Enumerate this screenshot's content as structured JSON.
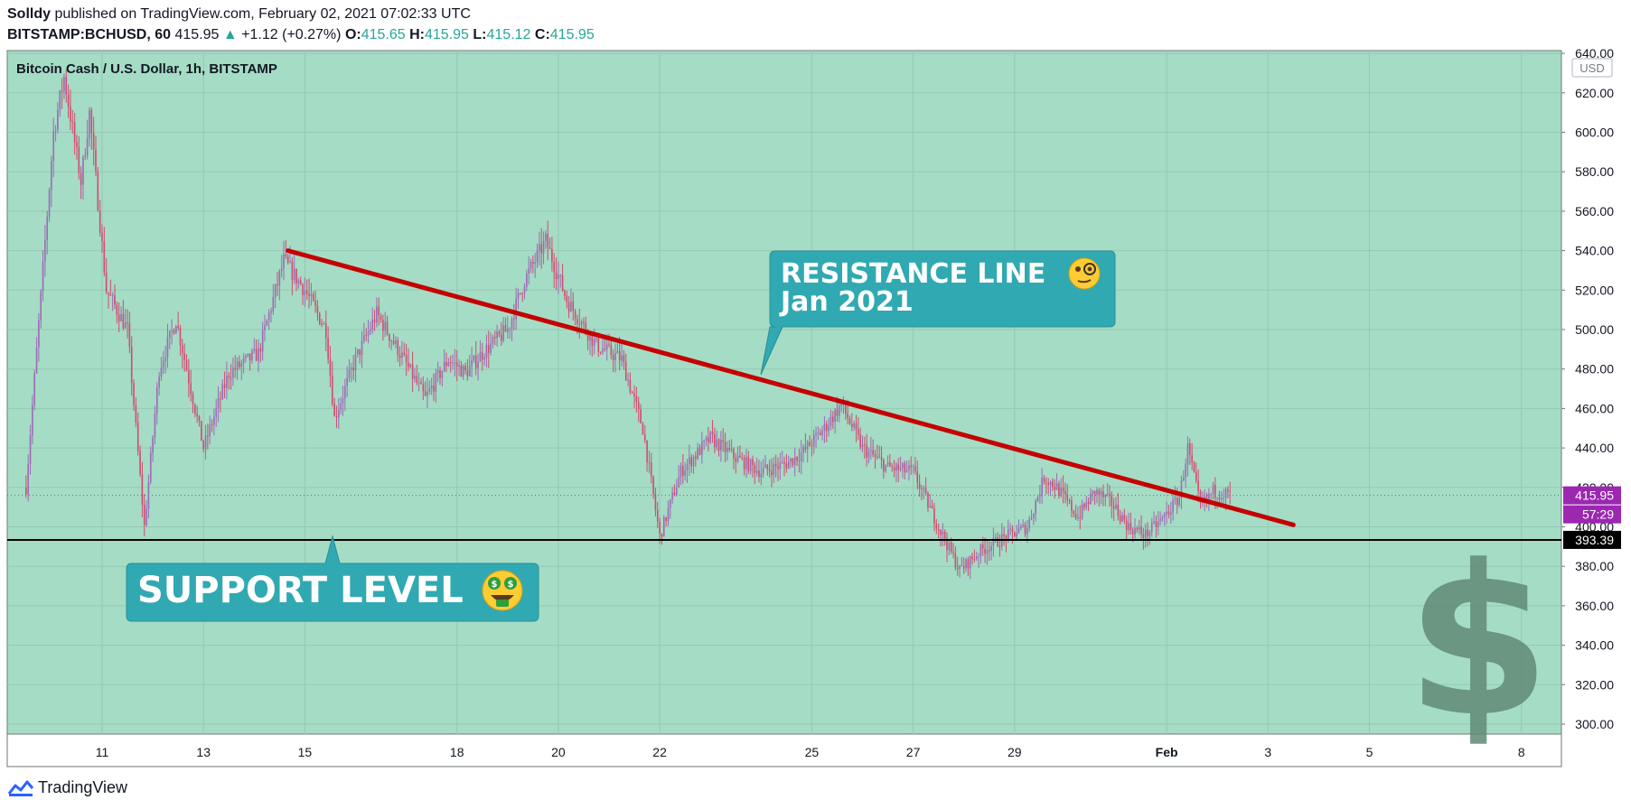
{
  "header": {
    "author": "Solldy",
    "published_text": "published on TradingView.com, February 02, 2021 07:02:33 UTC",
    "symbol": "BITSTAMP:BCHUSD, 60",
    "last_price": "415.95",
    "change": "+1.12 (+0.27%)",
    "o_label": "O:",
    "o_value": "415.65",
    "h_label": "H:",
    "h_value": "415.95",
    "l_label": "L:",
    "l_value": "415.12",
    "c_label": "C:",
    "c_value": "415.95"
  },
  "footer": {
    "brand": "TradingView"
  },
  "colors": {
    "background": "#a5dcc5",
    "candle": "#d14b6e",
    "resistance_line": "#c40000",
    "callout": "#30a9b2",
    "price_badge": "#9c27b0",
    "support_badge": "#000000"
  },
  "chart_data": {
    "type": "candlestick",
    "title": "Bitcoin Cash / U.S. Dollar, 1h, BITSTAMP",
    "currency": "USD",
    "x_ticks": [
      "11",
      "13",
      "15",
      "18",
      "20",
      "22",
      "25",
      "27",
      "29",
      "Feb",
      "3",
      "5",
      "8"
    ],
    "y_ticks": [
      "300.00",
      "320.00",
      "340.00",
      "360.00",
      "380.00",
      "400.00",
      "420.00",
      "440.00",
      "460.00",
      "480.00",
      "500.00",
      "520.00",
      "540.00",
      "560.00",
      "580.00",
      "600.00",
      "620.00",
      "640.00"
    ],
    "ylim": [
      295,
      642
    ],
    "price_path": [
      {
        "t": "Jan 9 12:00",
        "p": 420
      },
      {
        "t": "Jan 10 01:00",
        "p": 600
      },
      {
        "t": "Jan 10 06:00",
        "p": 628
      },
      {
        "t": "Jan 10 14:00",
        "p": 575
      },
      {
        "t": "Jan 10 18:00",
        "p": 610
      },
      {
        "t": "Jan 11 02:00",
        "p": 520
      },
      {
        "t": "Jan 11 12:00",
        "p": 500
      },
      {
        "t": "Jan 11 16:00",
        "p": 450
      },
      {
        "t": "Jan 11 20:00",
        "p": 400
      },
      {
        "t": "Jan 12 03:00",
        "p": 480
      },
      {
        "t": "Jan 12 11:00",
        "p": 505
      },
      {
        "t": "Jan 12 18:00",
        "p": 470
      },
      {
        "t": "Jan 13 00:00",
        "p": 440
      },
      {
        "t": "Jan 13 12:00",
        "p": 478
      },
      {
        "t": "Jan 14 02:00",
        "p": 488
      },
      {
        "t": "Jan 14 14:00",
        "p": 535
      },
      {
        "t": "Jan 15 00:00",
        "p": 520
      },
      {
        "t": "Jan 15 10:00",
        "p": 500
      },
      {
        "t": "Jan 15 14:00",
        "p": 455
      },
      {
        "t": "Jan 16 00:00",
        "p": 485
      },
      {
        "t": "Jan 16 10:00",
        "p": 508
      },
      {
        "t": "Jan 16 20:00",
        "p": 490
      },
      {
        "t": "Jan 17 09:00",
        "p": 465
      },
      {
        "t": "Jan 17 20:00",
        "p": 485
      },
      {
        "t": "Jan 18 04:00",
        "p": 478
      },
      {
        "t": "Jan 18 12:00",
        "p": 488
      },
      {
        "t": "Jan 19 00:00",
        "p": 500
      },
      {
        "t": "Jan 19 08:00",
        "p": 525
      },
      {
        "t": "Jan 19 18:00",
        "p": 545
      },
      {
        "t": "Jan 20 04:00",
        "p": 515
      },
      {
        "t": "Jan 20 18:00",
        "p": 492
      },
      {
        "t": "Jan 21 06:00",
        "p": 485
      },
      {
        "t": "Jan 21 16:00",
        "p": 450
      },
      {
        "t": "Jan 22 00:00",
        "p": 395
      },
      {
        "t": "Jan 22 10:00",
        "p": 428
      },
      {
        "t": "Jan 23 00:00",
        "p": 445
      },
      {
        "t": "Jan 23 12:00",
        "p": 435
      },
      {
        "t": "Jan 24 00:00",
        "p": 428
      },
      {
        "t": "Jan 24 12:00",
        "p": 432
      },
      {
        "t": "Jan 24 20:00",
        "p": 438
      },
      {
        "t": "Jan 25 06:00",
        "p": 450
      },
      {
        "t": "Jan 25 14:00",
        "p": 462
      },
      {
        "t": "Jan 26 00:00",
        "p": 440
      },
      {
        "t": "Jan 26 12:00",
        "p": 430
      },
      {
        "t": "Jan 27 00:00",
        "p": 428
      },
      {
        "t": "Jan 27 12:00",
        "p": 400
      },
      {
        "t": "Jan 27 22:00",
        "p": 378
      },
      {
        "t": "Jan 28 08:00",
        "p": 388
      },
      {
        "t": "Jan 28 20:00",
        "p": 395
      },
      {
        "t": "Jan 29 06:00",
        "p": 400
      },
      {
        "t": "Jan 29 14:00",
        "p": 425
      },
      {
        "t": "Jan 29 20:00",
        "p": 420
      },
      {
        "t": "Jan 30 06:00",
        "p": 405
      },
      {
        "t": "Jan 30 14:00",
        "p": 418
      },
      {
        "t": "Jan 30 22:00",
        "p": 412
      },
      {
        "t": "Jan 31 06:00",
        "p": 400
      },
      {
        "t": "Jan 31 14:00",
        "p": 396
      },
      {
        "t": "Jan 31 22:00",
        "p": 404
      },
      {
        "t": "Feb 1 06:00",
        "p": 415
      },
      {
        "t": "Feb 1 10:00",
        "p": 440
      },
      {
        "t": "Feb 1 16:00",
        "p": 410
      },
      {
        "t": "Feb 1 22:00",
        "p": 418
      },
      {
        "t": "Feb 2 07:00",
        "p": 415.95
      }
    ],
    "annotations": {
      "resistance": {
        "label_line1": "RESISTANCE LINE",
        "label_line2": "Jan 2021",
        "from": {
          "t": "Jan 14 16:00",
          "p": 540
        },
        "to": {
          "t": "Feb 3 12:00",
          "p": 401
        }
      },
      "support": {
        "label": "SUPPORT LEVEL",
        "price": "393.39"
      },
      "last_price_badge": "415.95",
      "countdown_badge": "57:29",
      "resistance_emoji": "face-with-monocle",
      "support_emoji": "money-mouth-face",
      "watermark": "$"
    }
  }
}
